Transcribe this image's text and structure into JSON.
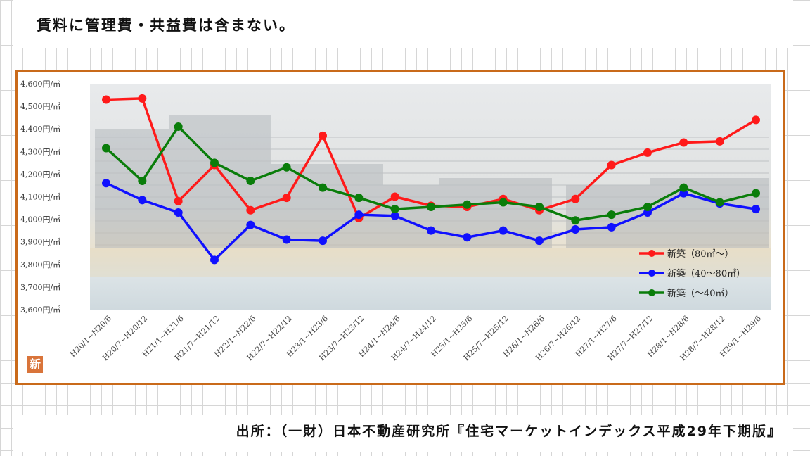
{
  "header": {
    "note": "賃料に管理費・共益費は含まない。"
  },
  "footer": {
    "source": "出所：（一財）日本不動産研究所『住宅マーケットインデックス平成29年下期版』"
  },
  "badge": {
    "label": "新"
  },
  "colors": {
    "frame": "#c96a1a",
    "red": "#ff1a1a",
    "blue": "#1010ff",
    "green": "#0a7d0a"
  },
  "chart_data": {
    "type": "line",
    "ylim": [
      3600,
      4600
    ],
    "yticks": [
      "4,600円/㎡",
      "4,500円/㎡",
      "4,400円/㎡",
      "4,300円/㎡",
      "4,200円/㎡",
      "4,100円/㎡",
      "4,000円/㎡",
      "3,900円/㎡",
      "3,800円/㎡",
      "3,700円/㎡",
      "3,600円/㎡"
    ],
    "categories": [
      "H20/1~H20/6",
      "H20/7~H20/12",
      "H21/1~H21/6",
      "H21/7~H21/12",
      "H22/1~H22/6",
      "H22/7~H22/12",
      "H23/1~H23/6",
      "H23/7~H23/12",
      "H24/1~H24/6",
      "H24/7~H24/12",
      "H25/1~H25/6",
      "H25/7~H25/12",
      "H26/1~H26/6",
      "H26/7~H26/12",
      "H27/1~H27/6",
      "H27/7~H27/12",
      "H28/1~H28/6",
      "H28/7~H28/12",
      "H29/1~H29/6"
    ],
    "series": [
      {
        "name": "新築（80㎡～）",
        "color": "#ff1a1a",
        "values": [
          4530,
          4535,
          4080,
          4240,
          4040,
          4095,
          4370,
          4005,
          4100,
          4060,
          4055,
          4090,
          4040,
          4090,
          4240,
          4295,
          4340,
          4345,
          4440
        ]
      },
      {
        "name": "新築（40～80㎡）",
        "color": "#1010ff",
        "values": [
          4160,
          4085,
          4030,
          3820,
          3975,
          3910,
          3905,
          4020,
          4015,
          3950,
          3920,
          3950,
          3905,
          3955,
          3965,
          4030,
          4115,
          4070,
          4045
        ]
      },
      {
        "name": "新築（～40㎡）",
        "color": "#0a7d0a",
        "values": [
          4315,
          4170,
          4410,
          4250,
          4170,
          4230,
          4140,
          4095,
          4045,
          4055,
          4065,
          4075,
          4055,
          3995,
          4020,
          4055,
          4140,
          4075,
          4115
        ]
      }
    ],
    "legend": {
      "position": "lower-right"
    },
    "grid": false
  }
}
